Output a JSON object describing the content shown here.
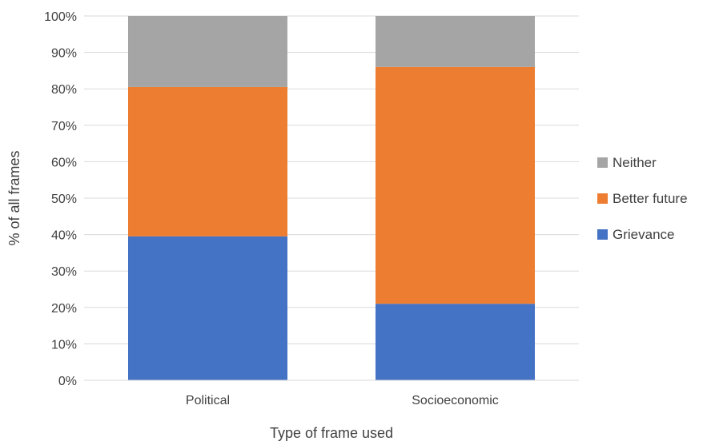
{
  "chart_data": {
    "type": "bar",
    "stacked": true,
    "categories": [
      "Political",
      "Socioeconomic"
    ],
    "series": [
      {
        "name": "Grievance",
        "values": [
          39.5,
          21
        ],
        "color": "#4472C4"
      },
      {
        "name": "Better future",
        "values": [
          41,
          65
        ],
        "color": "#ED7D31"
      },
      {
        "name": "Neither",
        "values": [
          19.5,
          14
        ],
        "color": "#A5A5A5"
      }
    ],
    "xlabel": "Type of frame used",
    "ylabel": "% of all frames",
    "ylim": [
      0,
      100
    ],
    "yticks": [
      "0%",
      "10%",
      "20%",
      "30%",
      "40%",
      "50%",
      "60%",
      "70%",
      "80%",
      "90%",
      "100%"
    ],
    "grid": true,
    "legend": {
      "position": "right",
      "order": [
        "Neither",
        "Better future",
        "Grievance"
      ]
    }
  }
}
